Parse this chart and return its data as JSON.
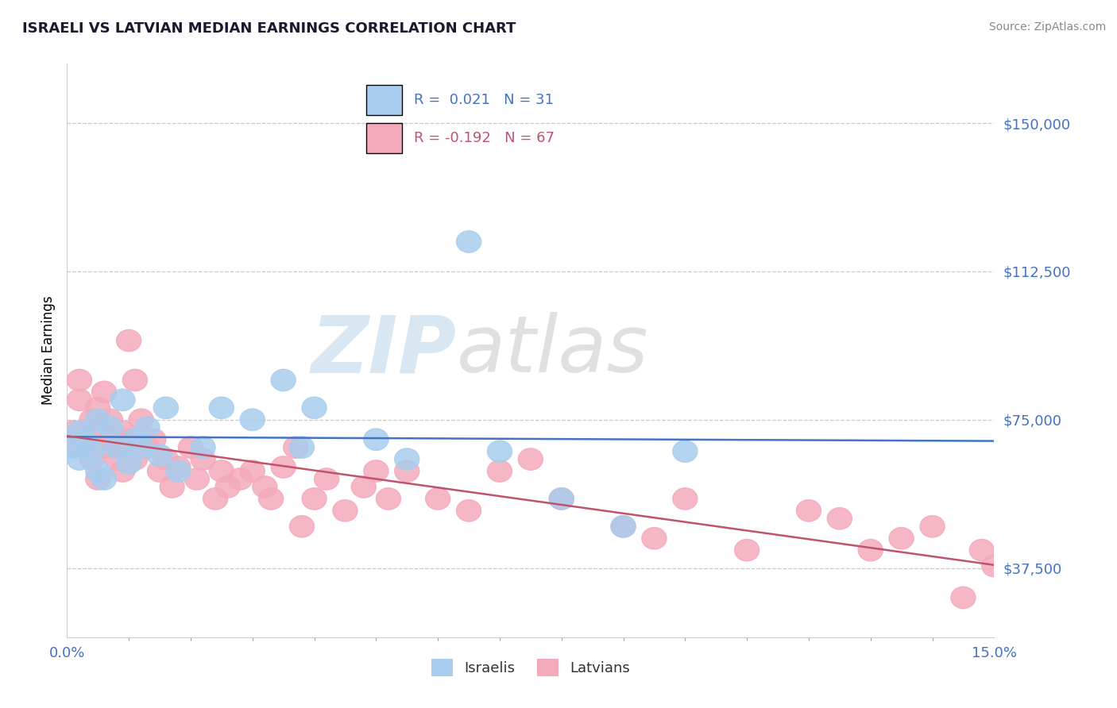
{
  "title": "ISRAELI VS LATVIAN MEDIAN EARNINGS CORRELATION CHART",
  "source": "Source: ZipAtlas.com",
  "ylabel": "Median Earnings",
  "xlim": [
    0.0,
    0.15
  ],
  "ylim": [
    20000,
    165000
  ],
  "yticks": [
    37500,
    75000,
    112500,
    150000
  ],
  "ytick_labels": [
    "$37,500",
    "$75,000",
    "$112,500",
    "$150,000"
  ],
  "xtick_labels": [
    "0.0%",
    "15.0%"
  ],
  "watermark_zip": "ZIP",
  "watermark_atlas": "atlas",
  "legend_r_israeli": "R =  0.021",
  "legend_n_israeli": "N = 31",
  "legend_r_latvian": "R = -0.192",
  "legend_n_latvian": "N = 67",
  "israeli_color": "#A8CDEE",
  "latvian_color": "#F4AABB",
  "trend_israeli_color": "#4472C4",
  "trend_latvian_color": "#C0546A",
  "israelis_x": [
    0.001,
    0.002,
    0.002,
    0.003,
    0.004,
    0.005,
    0.005,
    0.006,
    0.007,
    0.008,
    0.009,
    0.01,
    0.011,
    0.012,
    0.013,
    0.015,
    0.016,
    0.018,
    0.022,
    0.025,
    0.03,
    0.035,
    0.038,
    0.04,
    0.05,
    0.055,
    0.065,
    0.07,
    0.08,
    0.09,
    0.1
  ],
  "israelis_y": [
    68000,
    72000,
    65000,
    70000,
    67000,
    62000,
    75000,
    60000,
    73000,
    68000,
    80000,
    64000,
    70000,
    68000,
    73000,
    66000,
    78000,
    62000,
    68000,
    78000,
    75000,
    85000,
    68000,
    78000,
    70000,
    65000,
    120000,
    67000,
    55000,
    48000,
    67000
  ],
  "latvians_x": [
    0.001,
    0.001,
    0.002,
    0.002,
    0.003,
    0.003,
    0.004,
    0.004,
    0.005,
    0.005,
    0.005,
    0.006,
    0.006,
    0.007,
    0.007,
    0.008,
    0.008,
    0.009,
    0.009,
    0.01,
    0.01,
    0.011,
    0.011,
    0.012,
    0.013,
    0.014,
    0.015,
    0.016,
    0.017,
    0.018,
    0.02,
    0.021,
    0.022,
    0.024,
    0.025,
    0.026,
    0.028,
    0.03,
    0.032,
    0.033,
    0.035,
    0.037,
    0.038,
    0.04,
    0.042,
    0.045,
    0.048,
    0.05,
    0.052,
    0.055,
    0.06,
    0.065,
    0.07,
    0.075,
    0.08,
    0.09,
    0.095,
    0.1,
    0.11,
    0.12,
    0.125,
    0.13,
    0.135,
    0.14,
    0.145,
    0.148,
    0.15
  ],
  "latvians_y": [
    68000,
    72000,
    80000,
    85000,
    70000,
    68000,
    75000,
    65000,
    78000,
    73000,
    60000,
    82000,
    68000,
    75000,
    70000,
    65000,
    68000,
    72000,
    62000,
    70000,
    95000,
    85000,
    65000,
    75000,
    68000,
    70000,
    62000,
    65000,
    58000,
    63000,
    68000,
    60000,
    65000,
    55000,
    62000,
    58000,
    60000,
    62000,
    58000,
    55000,
    63000,
    68000,
    48000,
    55000,
    60000,
    52000,
    58000,
    62000,
    55000,
    62000,
    55000,
    52000,
    62000,
    65000,
    55000,
    48000,
    45000,
    55000,
    42000,
    52000,
    50000,
    42000,
    45000,
    48000,
    30000,
    42000,
    38000
  ]
}
